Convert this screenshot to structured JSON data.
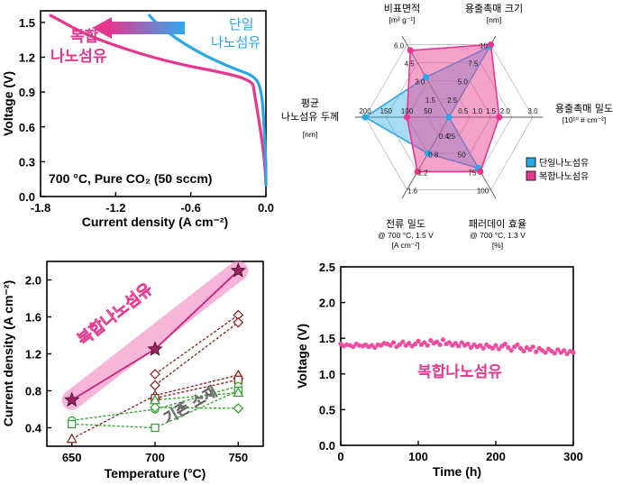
{
  "colors": {
    "pink": "#e6378f",
    "blue": "#29a6e8",
    "darkred": "#8b1a1a",
    "green": "#2ca02c",
    "magenta_line": "#cc1f7a",
    "star": "#9a2262"
  },
  "chart_data": [
    {
      "type": "line",
      "id": "iv_curve",
      "xlabel": "Current density (A cm⁻²)",
      "ylabel": "Voltage (V)",
      "xlim": [
        -1.8,
        0.0
      ],
      "ylim": [
        0.0,
        1.6
      ],
      "xticks": [
        "-1.8",
        "-1.2",
        "-0.6",
        "0.0"
      ],
      "yticks": [
        "0.0",
        "0.3",
        "0.6",
        "0.9",
        "1.2",
        "1.5"
      ],
      "annotation": "700 °C, Pure CO₂ (50 sccm)",
      "series": [
        {
          "name": "복합\n나노섬유",
          "label_lines": [
            "복합",
            "나노섬유"
          ],
          "color": "#e6378f",
          "x": [
            0.0,
            -0.01,
            -0.04,
            -0.07,
            -0.09,
            -0.1,
            -0.11,
            -0.2,
            -0.4,
            -0.6,
            -0.8,
            -1.0,
            -1.2,
            -1.4,
            -1.55,
            -1.65,
            -1.72
          ],
          "y": [
            0.1,
            0.3,
            0.55,
            0.75,
            0.88,
            0.95,
            0.98,
            1.03,
            1.08,
            1.12,
            1.17,
            1.23,
            1.3,
            1.38,
            1.46,
            1.52,
            1.56
          ]
        },
        {
          "name": "단일\n나노섬유",
          "label_lines": [
            "단일",
            "나노섬유"
          ],
          "color": "#29a6e8",
          "x": [
            0.0,
            0.0,
            -0.01,
            -0.02,
            -0.03,
            -0.05,
            -0.07,
            -0.12,
            -0.25,
            -0.4,
            -0.55,
            -0.7,
            -0.8,
            -0.88,
            -0.93
          ],
          "y": [
            0.1,
            0.3,
            0.5,
            0.7,
            0.85,
            0.95,
            1.0,
            1.05,
            1.1,
            1.17,
            1.25,
            1.35,
            1.43,
            1.5,
            1.56
          ]
        }
      ]
    },
    {
      "type": "radar",
      "id": "radar",
      "axes": [
        {
          "label": "용출촉매 크기",
          "sub": [
            "[nm]"
          ],
          "ticks": [
            "2.5",
            "5.0",
            "7.5",
            "10"
          ]
        },
        {
          "label": "용출촉매 밀도",
          "sub": [
            "[10¹⁰ # cm⁻²]"
          ],
          "ticks": [
            "0.5",
            "1.0",
            "1.5",
            "2.0",
            "3.0"
          ]
        },
        {
          "label": "패러데이 효율",
          "sub": [
            "@ 700 °C, 1.3 V",
            "[%]"
          ],
          "ticks": [
            "25",
            "50",
            "75",
            "100"
          ]
        },
        {
          "label": "전류 밀도",
          "sub": [
            "@ 700 °C, 1.5 V",
            "[A cm⁻²]"
          ],
          "ticks": [
            "0.4",
            "0.8",
            "1.2",
            "1.6"
          ]
        },
        {
          "label": "평균\n나노섬유 두께",
          "label_lines": [
            "평균",
            "나노섬유 두께"
          ],
          "sub": [
            "[nm]"
          ],
          "ticks": [
            "50",
            "100",
            "150",
            "200"
          ]
        },
        {
          "label": "비표면적",
          "sub": [
            "[m² g⁻¹]"
          ],
          "ticks": [
            "1.5",
            "3.0",
            "4.5",
            "6.0"
          ]
        }
      ],
      "series": [
        {
          "name": "단일나노섬유",
          "color": "#29a6e8",
          "values": [
            0.97,
            0.0,
            0.7,
            0.5,
            1.0,
            0.55
          ]
        },
        {
          "name": "복합나노섬유",
          "color": "#e6378f",
          "values": [
            1.0,
            0.6,
            0.75,
            0.75,
            0.5,
            0.92
          ]
        }
      ]
    },
    {
      "type": "scatter",
      "id": "temperature",
      "xlabel": "Temperature (°C)",
      "ylabel": "Current density (A cm⁻²)",
      "xlim": [
        635,
        765
      ],
      "ylim": [
        0.2,
        2.2
      ],
      "xticks": [
        "650",
        "700",
        "750"
      ],
      "yticks": [
        "0.4",
        "0.8",
        "1.2",
        "1.6",
        "2.0"
      ],
      "highlight_label": "복합나노섬유",
      "baseline_label": "기존 소재",
      "series": [
        {
          "name": "복합나노섬유",
          "marker": "star",
          "color": "#cc1f7a",
          "x": [
            650,
            700,
            750
          ],
          "y": [
            0.7,
            1.25,
            2.1
          ]
        },
        {
          "name": "ref-diamond-1",
          "marker": "diamond",
          "color": "#8b1a1a",
          "x": [
            700,
            750
          ],
          "y": [
            0.98,
            1.62
          ]
        },
        {
          "name": "ref-diamond-2",
          "marker": "diamond",
          "color": "#8b1a1a",
          "x": [
            700,
            750
          ],
          "y": [
            0.86,
            1.54
          ]
        },
        {
          "name": "ref-triangle",
          "marker": "triangle",
          "color": "#8b1a1a",
          "x": [
            650,
            700,
            750
          ],
          "y": [
            0.28,
            0.75,
            0.97
          ]
        },
        {
          "name": "ref-square-1",
          "marker": "square",
          "color": "#8b1a1a",
          "x": [
            700,
            750
          ],
          "y": [
            0.72,
            0.92
          ]
        },
        {
          "name": "ref-circle",
          "marker": "circle",
          "color": "#2ca02c",
          "x": [
            650,
            700,
            750
          ],
          "y": [
            0.48,
            0.6,
            0.85
          ]
        },
        {
          "name": "ref-diamond-3",
          "marker": "diamond",
          "color": "#2ca02c",
          "x": [
            700,
            750
          ],
          "y": [
            0.62,
            0.61
          ]
        },
        {
          "name": "ref-square-2",
          "marker": "square",
          "color": "#2ca02c",
          "x": [
            650,
            700,
            750
          ],
          "y": [
            0.44,
            0.4,
            0.8
          ]
        },
        {
          "name": "ref-triangle-2",
          "marker": "triangle",
          "color": "#2ca02c",
          "x": [
            700,
            750
          ],
          "y": [
            0.7,
            0.78
          ]
        }
      ]
    },
    {
      "type": "scatter",
      "id": "stability",
      "xlabel": "Time (h)",
      "ylabel": "Voltage (V)",
      "xlim": [
        0,
        300
      ],
      "ylim": [
        0.0,
        2.5
      ],
      "xticks": [
        "0",
        "100",
        "200",
        "300"
      ],
      "yticks": [
        "0.0",
        "0.5",
        "1.0",
        "1.5",
        "2.0",
        "2.5"
      ],
      "label": "복합나노섬유",
      "points": [
        [
          0,
          1.42
        ],
        [
          4,
          1.39
        ],
        [
          8,
          1.41
        ],
        [
          12,
          1.4
        ],
        [
          16,
          1.38
        ],
        [
          20,
          1.42
        ],
        [
          24,
          1.4
        ],
        [
          28,
          1.39
        ],
        [
          32,
          1.41
        ],
        [
          36,
          1.38
        ],
        [
          40,
          1.4
        ],
        [
          44,
          1.37
        ],
        [
          48,
          1.41
        ],
        [
          52,
          1.4
        ],
        [
          56,
          1.43
        ],
        [
          60,
          1.42
        ],
        [
          64,
          1.4
        ],
        [
          68,
          1.44
        ],
        [
          72,
          1.38
        ],
        [
          76,
          1.41
        ],
        [
          80,
          1.45
        ],
        [
          84,
          1.4
        ],
        [
          88,
          1.43
        ],
        [
          92,
          1.39
        ],
        [
          96,
          1.42
        ],
        [
          100,
          1.46
        ],
        [
          104,
          1.41
        ],
        [
          108,
          1.44
        ],
        [
          112,
          1.4
        ],
        [
          116,
          1.47
        ],
        [
          120,
          1.43
        ],
        [
          124,
          1.45
        ],
        [
          128,
          1.41
        ],
        [
          132,
          1.48
        ],
        [
          136,
          1.42
        ],
        [
          140,
          1.44
        ],
        [
          144,
          1.4
        ],
        [
          148,
          1.43
        ],
        [
          152,
          1.39
        ],
        [
          156,
          1.44
        ],
        [
          160,
          1.4
        ],
        [
          164,
          1.42
        ],
        [
          168,
          1.37
        ],
        [
          172,
          1.41
        ],
        [
          176,
          1.38
        ],
        [
          180,
          1.4
        ],
        [
          184,
          1.36
        ],
        [
          188,
          1.41
        ],
        [
          192,
          1.38
        ],
        [
          196,
          1.36
        ],
        [
          200,
          1.4
        ],
        [
          204,
          1.35
        ],
        [
          208,
          1.39
        ],
        [
          212,
          1.42
        ],
        [
          216,
          1.37
        ],
        [
          220,
          1.33
        ],
        [
          224,
          1.38
        ],
        [
          228,
          1.41
        ],
        [
          232,
          1.36
        ],
        [
          236,
          1.32
        ],
        [
          240,
          1.37
        ],
        [
          244,
          1.34
        ],
        [
          248,
          1.38
        ],
        [
          252,
          1.31
        ],
        [
          256,
          1.36
        ],
        [
          260,
          1.33
        ],
        [
          264,
          1.3
        ],
        [
          268,
          1.35
        ],
        [
          272,
          1.32
        ],
        [
          276,
          1.29
        ],
        [
          280,
          1.34
        ],
        [
          284,
          1.3
        ],
        [
          288,
          1.33
        ],
        [
          292,
          1.28
        ],
        [
          296,
          1.32
        ],
        [
          300,
          1.3
        ]
      ]
    }
  ],
  "legend": {
    "items": [
      {
        "name": "단일나노섬유"
      },
      {
        "name": "복합나노섬유"
      }
    ]
  }
}
